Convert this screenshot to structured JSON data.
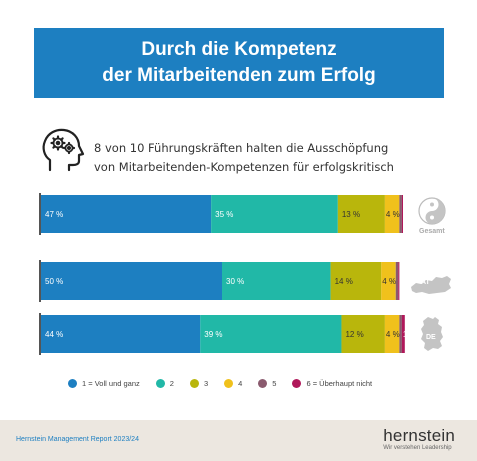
{
  "banner": {
    "line1": "Durch die Kompetenz",
    "line2": "der Mitarbeitenden zum Erfolg"
  },
  "headline": {
    "line1": "8 von 10 Führungskräften halten die Ausschöpfung",
    "line2": "von Mitarbeitenden-Kompetenzen für erfolgskritisch",
    "icon": "head-gears-icon"
  },
  "chart_data": {
    "type": "bar",
    "orientation": "horizontal",
    "stacked": true,
    "percent": true,
    "categories": [
      "Gesamt",
      "AT",
      "DE"
    ],
    "series": [
      {
        "name": "1 = Voll und ganz",
        "color": "#1d7fc1",
        "values": [
          47,
          50,
          44
        ],
        "labels": [
          "47 %",
          "50 %",
          "44 %"
        ]
      },
      {
        "name": "2",
        "color": "#21b8a7",
        "values": [
          35,
          30,
          39
        ],
        "labels": [
          "35 %",
          "30 %",
          "39 %"
        ]
      },
      {
        "name": "3",
        "color": "#b9b60c",
        "values": [
          13,
          14,
          12
        ],
        "labels": [
          "13 %",
          "14 %",
          "12 %"
        ]
      },
      {
        "name": "4",
        "color": "#f0c11c",
        "values": [
          4,
          4,
          4
        ],
        "labels": [
          "4 %",
          "4 %",
          "4 %"
        ]
      },
      {
        "name": "5",
        "color": "#8a5a6e",
        "values": [
          0.7,
          0.7,
          0.7
        ],
        "labels": [
          "",
          "",
          ""
        ]
      },
      {
        "name": "6 = Überhaupt nicht",
        "color": "#b0185a",
        "values": [
          0.3,
          0.3,
          0.8
        ],
        "labels": [
          "",
          "",
          "1"
        ]
      }
    ],
    "region_icons": [
      "yin-yang-icon",
      "austria-map-icon",
      "germany-map-icon"
    ],
    "legend": "bottom",
    "xlim": [
      0,
      100
    ]
  },
  "footer": {
    "report": "Hernstein Management Report 2023/24",
    "brand": "hernstein",
    "tagline": "Wir verstehen Leadership"
  }
}
